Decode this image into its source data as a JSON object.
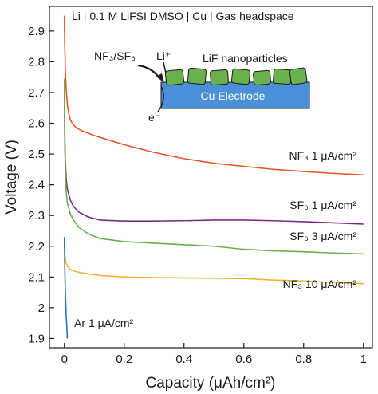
{
  "chart_data": {
    "type": "line",
    "title": "Li | 0.1 M LiFSI DMSO | Cu | Gas headspace",
    "xlabel": "Capacity (μAh/cm²)",
    "ylabel": "Voltage (V)",
    "xlim": [
      -0.05,
      1.03
    ],
    "ylim": [
      1.87,
      2.98
    ],
    "xticks": [
      0,
      0.2,
      0.4,
      0.6,
      0.8,
      1
    ],
    "xtick_labels": [
      "0",
      "0.2",
      "0.4",
      "0.6",
      "0.8",
      "1"
    ],
    "yticks": [
      1.9,
      2.0,
      2.1,
      2.2,
      2.3,
      2.4,
      2.5,
      2.6,
      2.7,
      2.8,
      2.9
    ],
    "ytick_labels": [
      "1.9",
      "2",
      "2.1",
      "2.2",
      "2.3",
      "2.4",
      "2.5",
      "2.6",
      "2.7",
      "2.8",
      "2.9"
    ],
    "grid": false,
    "series": [
      {
        "name": "NF₃ 1 μA/cm²",
        "color": "#e8552a",
        "x": [
          0,
          0.001,
          0.003,
          0.006,
          0.01,
          0.015,
          0.02,
          0.03,
          0.04,
          0.06,
          0.1,
          0.2,
          0.3,
          0.4,
          0.5,
          0.6,
          0.7,
          0.8,
          0.9,
          1.0
        ],
        "y": [
          2.95,
          2.86,
          2.78,
          2.71,
          2.66,
          2.63,
          2.61,
          2.595,
          2.585,
          2.575,
          2.56,
          2.53,
          2.505,
          2.485,
          2.47,
          2.46,
          2.45,
          2.443,
          2.437,
          2.432
        ]
      },
      {
        "name": "SF₆ 1 μA/cm²",
        "color": "#7b2a8c",
        "x": [
          0,
          0.001,
          0.003,
          0.006,
          0.01,
          0.02,
          0.03,
          0.05,
          0.08,
          0.12,
          0.2,
          0.3,
          0.4,
          0.5,
          0.6,
          0.7,
          0.8,
          0.9,
          1.0
        ],
        "y": [
          2.7,
          2.58,
          2.48,
          2.42,
          2.385,
          2.35,
          2.33,
          2.31,
          2.295,
          2.285,
          2.282,
          2.282,
          2.283,
          2.285,
          2.285,
          2.283,
          2.28,
          2.276,
          2.272
        ]
      },
      {
        "name": "SF₆ 3 μA/cm²",
        "color": "#6ab04c",
        "x": [
          0,
          0.001,
          0.003,
          0.006,
          0.01,
          0.02,
          0.03,
          0.05,
          0.08,
          0.12,
          0.2,
          0.3,
          0.4,
          0.5,
          0.6,
          0.7,
          0.8,
          0.9,
          1.0
        ],
        "y": [
          2.745,
          2.55,
          2.45,
          2.38,
          2.34,
          2.305,
          2.285,
          2.26,
          2.24,
          2.225,
          2.215,
          2.21,
          2.205,
          2.2,
          2.19,
          2.185,
          2.182,
          2.178,
          2.175
        ]
      },
      {
        "name": "NF₃ 10 μA/cm²",
        "color": "#f2b134",
        "x": [
          0,
          0.001,
          0.003,
          0.006,
          0.01,
          0.02,
          0.03,
          0.05,
          0.08,
          0.12,
          0.2,
          0.3,
          0.4,
          0.5,
          0.6,
          0.7,
          0.8,
          0.9,
          1.0
        ],
        "y": [
          2.23,
          2.185,
          2.16,
          2.145,
          2.135,
          2.125,
          2.12,
          2.115,
          2.11,
          2.105,
          2.1,
          2.098,
          2.097,
          2.096,
          2.095,
          2.09,
          2.087,
          2.082,
          2.078
        ]
      },
      {
        "name": "Ar 1 μA/cm²",
        "color": "#1f77b4",
        "x": [
          0,
          0.001,
          0.002,
          0.003,
          0.004,
          0.005,
          0.006,
          0.008,
          0.01
        ],
        "y": [
          2.23,
          2.15,
          2.1,
          2.06,
          2.03,
          2.0,
          1.975,
          1.94,
          1.9
        ]
      }
    ],
    "annotations": {
      "NF3_1": "NF₃ 1 μA/cm²",
      "SF6_1": "SF₆ 1 μA/cm²",
      "SF6_3": "SF₆ 3 μA/cm²",
      "NF3_10": "NF₃ 10 μA/cm²",
      "Ar_1": "Ar 1 μA/cm²"
    },
    "inset": {
      "gas_label": "NF₃/SF₆",
      "li_label": "Li⁺",
      "particles_label": "LiF nanoparticles",
      "electrode_label": "Cu Electrode",
      "electron_label": "e⁻",
      "electrode_color": "#4a90d9",
      "particle_color": "#6ab04c"
    }
  }
}
